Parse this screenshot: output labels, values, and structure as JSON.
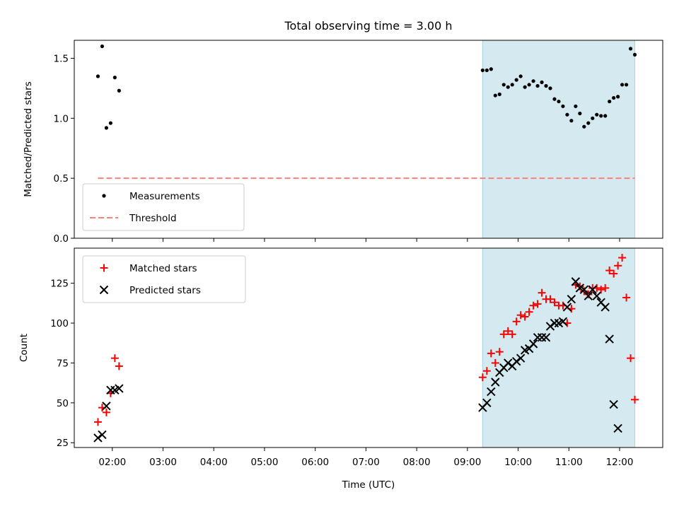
{
  "figure": {
    "title": "Total observing time = 3.00 h",
    "xlabel": "Time (UTC)"
  },
  "colors": {
    "measurements": "#000000",
    "threshold": "#ff7f7f",
    "matched": "#ff0000",
    "predicted": "#000000",
    "highlight_band": "#d4eaf0"
  },
  "chart_data": [
    {
      "type": "scatter",
      "ylabel": "Matched/Predicted stars",
      "xlim": [
        "01:15",
        "12:51"
      ],
      "ylim": [
        0.0,
        1.65
      ],
      "y_ticks": [
        0.0,
        0.5,
        1.0,
        1.5
      ],
      "y_tick_labels": [
        "0.0",
        "0.5",
        "1.0",
        "1.5"
      ],
      "x_tick_labels": [
        "02:00",
        "03:00",
        "04:00",
        "05:00",
        "06:00",
        "07:00",
        "08:00",
        "09:00",
        "10:00",
        "11:00",
        "12:00"
      ],
      "highlight_band": [
        "09:18",
        "12:18"
      ],
      "legend": {
        "placement": "lower-left",
        "entries": [
          "Measurements",
          "Threshold"
        ]
      },
      "series": [
        {
          "name": "Measurements",
          "marker": "dot",
          "points": [
            [
              "01:43",
              1.35
            ],
            [
              "01:48",
              1.6
            ],
            [
              "01:53",
              0.92
            ],
            [
              "01:58",
              0.96
            ],
            [
              "02:03",
              1.34
            ],
            [
              "02:08",
              1.23
            ],
            [
              "09:18",
              1.4
            ],
            [
              "09:23",
              1.4
            ],
            [
              "09:28",
              1.41
            ],
            [
              "09:33",
              1.19
            ],
            [
              "09:38",
              1.2
            ],
            [
              "09:43",
              1.28
            ],
            [
              "09:48",
              1.26
            ],
            [
              "09:53",
              1.28
            ],
            [
              "09:58",
              1.32
            ],
            [
              "10:03",
              1.35
            ],
            [
              "10:08",
              1.26
            ],
            [
              "10:13",
              1.28
            ],
            [
              "10:18",
              1.31
            ],
            [
              "10:23",
              1.27
            ],
            [
              "10:28",
              1.3
            ],
            [
              "10:33",
              1.27
            ],
            [
              "10:38",
              1.25
            ],
            [
              "10:43",
              1.16
            ],
            [
              "10:48",
              1.14
            ],
            [
              "10:53",
              1.1
            ],
            [
              "10:58",
              1.03
            ],
            [
              "11:03",
              0.98
            ],
            [
              "11:08",
              1.1
            ],
            [
              "11:13",
              1.04
            ],
            [
              "11:18",
              0.93
            ],
            [
              "11:23",
              0.96
            ],
            [
              "11:28",
              1.0
            ],
            [
              "11:33",
              1.03
            ],
            [
              "11:38",
              1.02
            ],
            [
              "11:43",
              1.02
            ],
            [
              "11:48",
              1.14
            ],
            [
              "11:53",
              1.17
            ],
            [
              "11:58",
              1.18
            ],
            [
              "12:03",
              1.28
            ],
            [
              "12:08",
              1.28
            ],
            [
              "12:13",
              1.58
            ],
            [
              "12:18",
              1.53
            ]
          ]
        },
        {
          "name": "Threshold",
          "style": "dashed",
          "points": [
            [
              "01:43",
              0.5
            ],
            [
              "12:18",
              0.5
            ]
          ]
        }
      ]
    },
    {
      "type": "scatter",
      "ylabel": "Count",
      "xlim": [
        "01:15",
        "12:51"
      ],
      "ylim": [
        22,
        147
      ],
      "y_ticks": [
        25,
        50,
        75,
        100,
        125
      ],
      "y_tick_labels": [
        "25",
        "50",
        "75",
        "100",
        "125"
      ],
      "x_tick_labels": [
        "02:00",
        "03:00",
        "04:00",
        "05:00",
        "06:00",
        "07:00",
        "08:00",
        "09:00",
        "10:00",
        "11:00",
        "12:00"
      ],
      "highlight_band": [
        "09:18",
        "12:18"
      ],
      "legend": {
        "placement": "upper-left",
        "entries": [
          "Matched stars",
          "Predicted stars"
        ]
      },
      "series": [
        {
          "name": "Matched stars",
          "marker": "plus",
          "points": [
            [
              "01:43",
              38
            ],
            [
              "01:48",
              47
            ],
            [
              "01:53",
              44
            ],
            [
              "01:58",
              56
            ],
            [
              "02:03",
              78
            ],
            [
              "02:08",
              73
            ],
            [
              "09:18",
              66
            ],
            [
              "09:23",
              70
            ],
            [
              "09:28",
              81
            ],
            [
              "09:33",
              75
            ],
            [
              "09:38",
              82
            ],
            [
              "09:43",
              93
            ],
            [
              "09:48",
              95
            ],
            [
              "09:53",
              93
            ],
            [
              "09:58",
              101
            ],
            [
              "10:03",
              105
            ],
            [
              "10:08",
              104
            ],
            [
              "10:13",
              107
            ],
            [
              "10:18",
              111
            ],
            [
              "10:23",
              112
            ],
            [
              "10:28",
              119
            ],
            [
              "10:33",
              115
            ],
            [
              "10:38",
              115
            ],
            [
              "10:43",
              113
            ],
            [
              "10:48",
              111
            ],
            [
              "10:53",
              111
            ],
            [
              "10:58",
              100
            ],
            [
              "11:03",
              109
            ],
            [
              "11:08",
              124
            ],
            [
              "11:13",
              123
            ],
            [
              "11:18",
              120
            ],
            [
              "11:23",
              118
            ],
            [
              "11:28",
              122
            ],
            [
              "11:33",
              122
            ],
            [
              "11:38",
              121
            ],
            [
              "11:43",
              122
            ],
            [
              "11:48",
              133
            ],
            [
              "11:53",
              131
            ],
            [
              "11:58",
              136
            ],
            [
              "12:03",
              141
            ],
            [
              "12:08",
              116
            ],
            [
              "12:13",
              78
            ],
            [
              "12:18",
              52
            ]
          ]
        },
        {
          "name": "Predicted stars",
          "marker": "x",
          "points": [
            [
              "01:43",
              28
            ],
            [
              "01:48",
              30
            ],
            [
              "01:53",
              48
            ],
            [
              "01:58",
              58
            ],
            [
              "02:03",
              58
            ],
            [
              "02:08",
              59
            ],
            [
              "09:18",
              47
            ],
            [
              "09:23",
              50
            ],
            [
              "09:28",
              57
            ],
            [
              "09:33",
              63
            ],
            [
              "09:38",
              69
            ],
            [
              "09:43",
              72
            ],
            [
              "09:48",
              75
            ],
            [
              "09:53",
              73
            ],
            [
              "09:58",
              76
            ],
            [
              "10:03",
              78
            ],
            [
              "10:08",
              83
            ],
            [
              "10:13",
              84
            ],
            [
              "10:18",
              87
            ],
            [
              "10:23",
              91
            ],
            [
              "10:28",
              91
            ],
            [
              "10:33",
              91
            ],
            [
              "10:38",
              98
            ],
            [
              "10:43",
              100
            ],
            [
              "10:48",
              100
            ],
            [
              "10:53",
              101
            ],
            [
              "10:58",
              110
            ],
            [
              "11:03",
              115
            ],
            [
              "11:08",
              126
            ],
            [
              "11:13",
              122
            ],
            [
              "11:18",
              121
            ],
            [
              "11:23",
              117
            ],
            [
              "11:28",
              121
            ],
            [
              "11:33",
              117
            ],
            [
              "11:38",
              113
            ],
            [
              "11:43",
              110
            ],
            [
              "11:48",
              90
            ],
            [
              "11:53",
              49
            ],
            [
              "11:58",
              34
            ]
          ]
        }
      ]
    }
  ]
}
